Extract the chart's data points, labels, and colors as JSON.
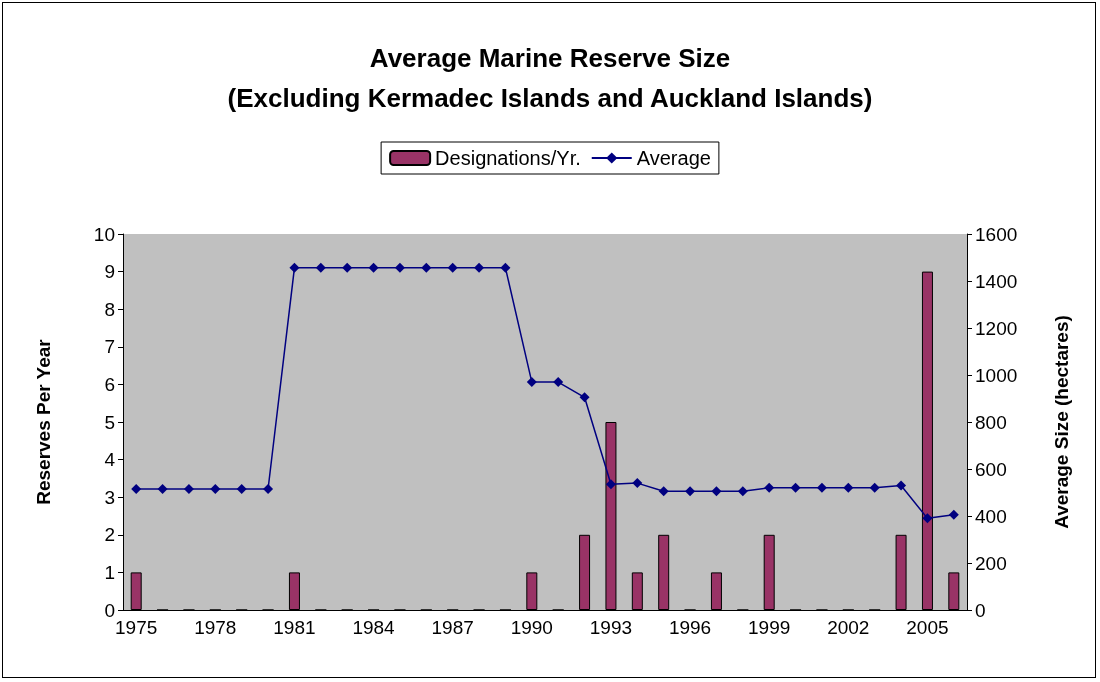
{
  "chart_data": {
    "type": "bar",
    "title": "Average Marine Reserve Size",
    "subtitle": "(Excluding Kermadec Islands and Auckland Islands)",
    "ylabel": "Reserves Per Year",
    "y2label": "Average Size (hectares)",
    "categories": [
      "1975",
      null,
      null,
      "1978",
      null,
      null,
      "1981",
      null,
      null,
      "1984",
      null,
      null,
      "1987",
      null,
      null,
      "1990",
      null,
      null,
      "1993",
      null,
      null,
      "1996",
      null,
      null,
      "1999",
      null,
      null,
      "2002",
      null,
      null,
      "2005",
      null
    ],
    "series": [
      {
        "name": "Designations/Yr.",
        "color": "#993366",
        "values": [
          1,
          0,
          0,
          0,
          0,
          0,
          1,
          0,
          0,
          0,
          0,
          0,
          0,
          0,
          0,
          1,
          0,
          2,
          5,
          1,
          2,
          0,
          1,
          0,
          2,
          0,
          0,
          0,
          0,
          2,
          9,
          1
        ]
      },
      {
        "name": "Average",
        "type": "line",
        "axis": "y2",
        "color": "#000080",
        "values": [
          515,
          515,
          515,
          515,
          515,
          515,
          1456,
          1456,
          1456,
          1456,
          1456,
          1456,
          1456,
          1456,
          1456,
          970,
          970,
          905,
          535,
          540,
          505,
          505,
          505,
          505,
          520,
          520,
          520,
          520,
          520,
          530,
          390,
          405
        ]
      }
    ],
    "ylim": [
      0,
      10
    ],
    "yticks": [
      0,
      1,
      2,
      3,
      4,
      5,
      6,
      7,
      8,
      9,
      10
    ],
    "y2lim": [
      0,
      1600
    ],
    "y2ticks": [
      0,
      200,
      400,
      600,
      800,
      1000,
      1200,
      1400,
      1600
    ],
    "legend": "top",
    "grid": false,
    "marker": "diamond",
    "line_style": "solid"
  }
}
